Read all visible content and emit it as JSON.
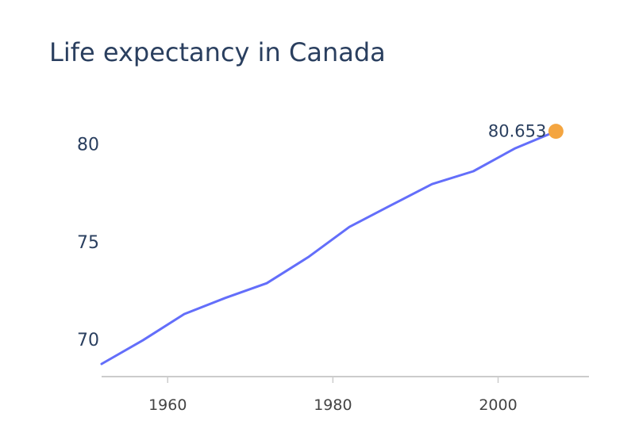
{
  "chart_data": {
    "type": "line",
    "title": "Life expectancy in Canada",
    "xlabel": "",
    "ylabel": "",
    "x": [
      1952,
      1957,
      1962,
      1967,
      1972,
      1977,
      1982,
      1987,
      1992,
      1997,
      2002,
      2007
    ],
    "series": [
      {
        "values": [
          68.75,
          69.96,
          71.3,
          72.13,
          72.88,
          74.21,
          75.76,
          76.86,
          77.95,
          78.61,
          79.77,
          80.653
        ]
      }
    ],
    "highlight": {
      "x": 2007,
      "y": 80.653,
      "label": "80.653"
    },
    "xlim": [
      1952,
      2011
    ],
    "ylim": [
      68.1,
      82.3
    ],
    "x_ticks": [
      1960,
      1980,
      2000
    ],
    "y_ticks": [
      70,
      75,
      80
    ],
    "grid": false,
    "colors": {
      "line": "#636efa",
      "marker": "#f4a540",
      "axis": "#cccccc",
      "text": "#2a3f5f"
    }
  }
}
